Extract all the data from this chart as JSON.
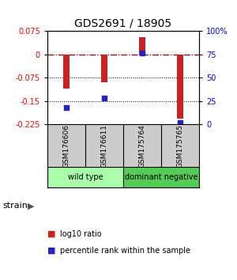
{
  "title": "GDS2691 / 18905",
  "samples": [
    "GSM176606",
    "GSM176611",
    "GSM175764",
    "GSM175765"
  ],
  "log10_ratio": [
    -0.11,
    -0.09,
    0.055,
    -0.205
  ],
  "percentile_rank": [
    18,
    28,
    76,
    2
  ],
  "ylim_left": [
    -0.225,
    0.075
  ],
  "ylim_right": [
    0,
    100
  ],
  "yticks_left": [
    0.075,
    0,
    -0.075,
    -0.15,
    -0.225
  ],
  "yticks_right": [
    100,
    75,
    50,
    25,
    0
  ],
  "bar_color": "#cc2222",
  "dot_color": "#2222cc",
  "groups": [
    {
      "label": "wild type",
      "samples": [
        0,
        1
      ],
      "color": "#aaffaa"
    },
    {
      "label": "dominant negative",
      "samples": [
        2,
        3
      ],
      "color": "#55cc55"
    }
  ],
  "group_row_color": "#cccccc",
  "strain_label": "strain",
  "legend_bar_label": "log10 ratio",
  "legend_dot_label": "percentile rank within the sample",
  "bar_width": 0.15
}
